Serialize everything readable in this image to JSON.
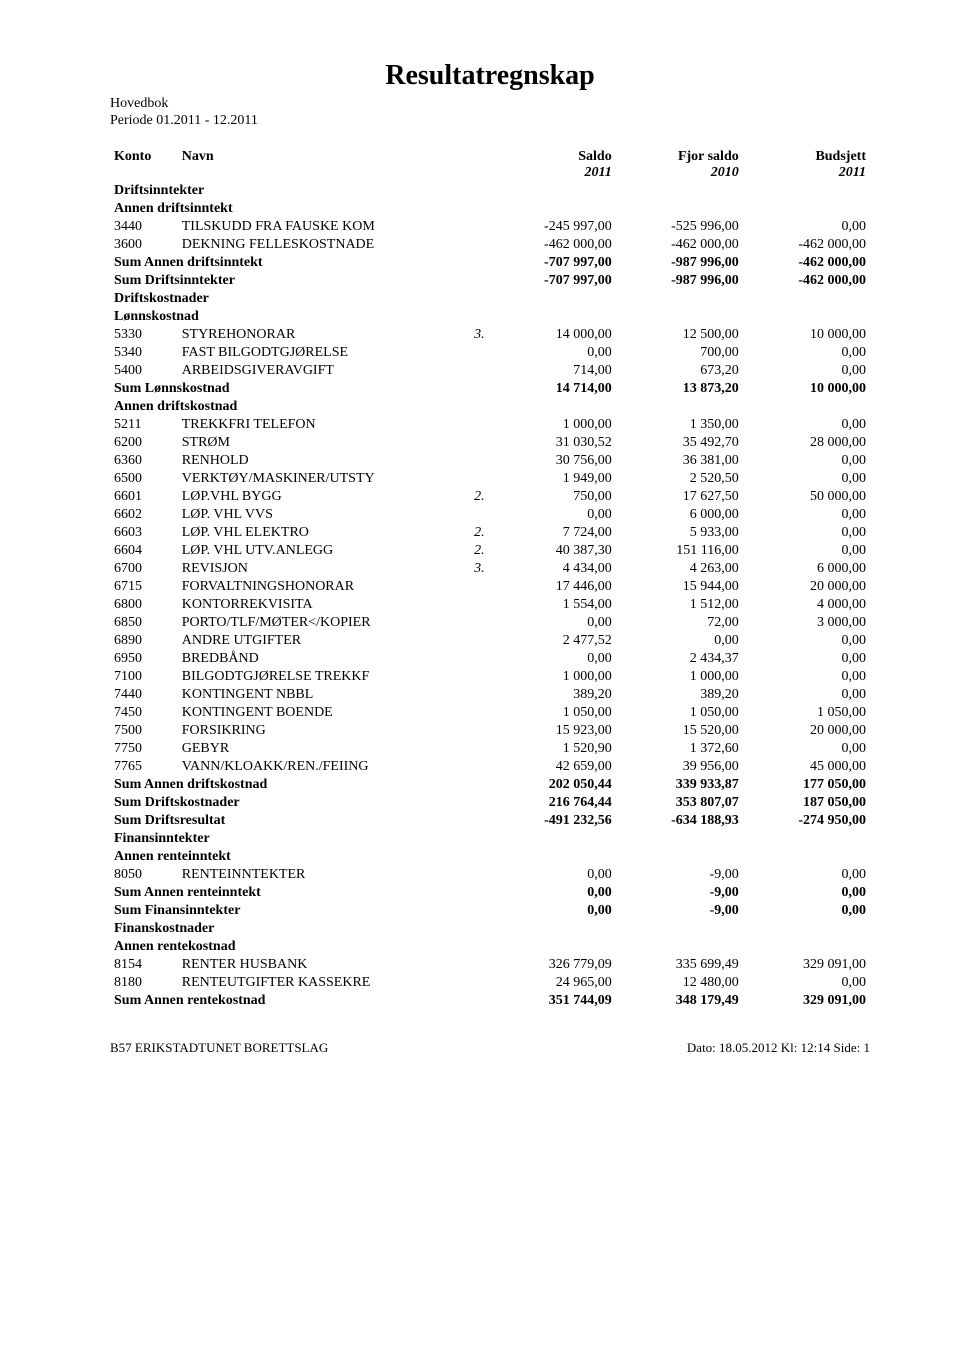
{
  "title": "Resultatregnskap",
  "header": {
    "hovedbok": "Hovedbok",
    "periode": "Periode 01.2011 - 12.2011"
  },
  "columns": {
    "konto": "Konto",
    "navn": "Navn",
    "saldo": "Saldo",
    "saldo_hand": "2011",
    "fjor": "Fjor saldo",
    "fjor_hand": "2010",
    "budsjett": "Budsjett",
    "budsjett_hand": "2011"
  },
  "sections": {
    "driftsinntekter": "Driftsinntekter",
    "driftskostnader": "Driftskostnader",
    "finansinntekter": "Finansinntekter",
    "finanskostnader": "Finanskostnader"
  },
  "groups": {
    "annen_driftsinntekt": {
      "title": "Annen driftsinntekt",
      "rows": [
        {
          "konto": "3440",
          "navn": "TILSKUDD FRA FAUSKE KOM",
          "note": "",
          "saldo": "-245 997,00",
          "fjor": "-525 996,00",
          "budsjett": "0,00"
        },
        {
          "konto": "3600",
          "navn": "DEKNING FELLESKOSTNADE",
          "note": "",
          "saldo": "-462 000,00",
          "fjor": "-462 000,00",
          "budsjett": "-462 000,00"
        }
      ],
      "sum": {
        "label": "Sum  Annen driftsinntekt",
        "saldo": "-707 997,00",
        "fjor": "-987 996,00",
        "budsjett": "-462 000,00"
      }
    },
    "sum_driftsinntekter": {
      "label": "Sum Driftsinntekter",
      "saldo": "-707 997,00",
      "fjor": "-987 996,00",
      "budsjett": "-462 000,00"
    },
    "lonnskostnad": {
      "title": "Lønnskostnad",
      "rows": [
        {
          "konto": "5330",
          "navn": "STYREHONORAR",
          "note": "3.",
          "saldo": "14 000,00",
          "fjor": "12 500,00",
          "budsjett": "10 000,00"
        },
        {
          "konto": "5340",
          "navn": "FAST BILGODTGJØRELSE",
          "note": "",
          "saldo": "0,00",
          "fjor": "700,00",
          "budsjett": "0,00"
        },
        {
          "konto": "5400",
          "navn": "ARBEIDSGIVERAVGIFT",
          "note": "",
          "saldo": "714,00",
          "fjor": "673,20",
          "budsjett": "0,00"
        }
      ],
      "sum": {
        "label": "Sum  Lønnskostnad",
        "saldo": "14 714,00",
        "fjor": "13 873,20",
        "budsjett": "10 000,00"
      }
    },
    "annen_driftskostnad": {
      "title": "Annen driftskostnad",
      "rows": [
        {
          "konto": "5211",
          "navn": "TREKKFRI TELEFON",
          "note": "",
          "saldo": "1 000,00",
          "fjor": "1 350,00",
          "budsjett": "0,00"
        },
        {
          "konto": "6200",
          "navn": "STRØM",
          "note": "",
          "saldo": "31 030,52",
          "fjor": "35 492,70",
          "budsjett": "28 000,00"
        },
        {
          "konto": "6360",
          "navn": "RENHOLD",
          "note": "",
          "saldo": "30 756,00",
          "fjor": "36 381,00",
          "budsjett": "0,00"
        },
        {
          "konto": "6500",
          "navn": "VERKTØY/MASKINER/UTSTY",
          "note": "",
          "saldo": "1 949,00",
          "fjor": "2 520,50",
          "budsjett": "0,00"
        },
        {
          "konto": "6601",
          "navn": "LØP.VHL BYGG",
          "note": "2.",
          "saldo": "750,00",
          "fjor": "17 627,50",
          "budsjett": "50 000,00"
        },
        {
          "konto": "6602",
          "navn": "LØP. VHL VVS",
          "note": "",
          "saldo": "0,00",
          "fjor": "6 000,00",
          "budsjett": "0,00"
        },
        {
          "konto": "6603",
          "navn": "LØP. VHL ELEKTRO",
          "note": "2.",
          "saldo": "7 724,00",
          "fjor": "5 933,00",
          "budsjett": "0,00"
        },
        {
          "konto": "6604",
          "navn": "LØP. VHL UTV.ANLEGG",
          "note": "2.",
          "saldo": "40 387,30",
          "fjor": "151 116,00",
          "budsjett": "0,00"
        },
        {
          "konto": "6700",
          "navn": "REVISJON",
          "note": "3.",
          "saldo": "4 434,00",
          "fjor": "4 263,00",
          "budsjett": "6 000,00"
        },
        {
          "konto": "6715",
          "navn": "FORVALTNINGSHONORAR",
          "note": "",
          "saldo": "17 446,00",
          "fjor": "15 944,00",
          "budsjett": "20 000,00"
        },
        {
          "konto": "6800",
          "navn": "KONTORREKVISITA",
          "note": "",
          "saldo": "1 554,00",
          "fjor": "1 512,00",
          "budsjett": "4 000,00"
        },
        {
          "konto": "6850",
          "navn": "PORTO/TLF/MØTER</KOPIER",
          "note": "",
          "saldo": "0,00",
          "fjor": "72,00",
          "budsjett": "3 000,00"
        },
        {
          "konto": "6890",
          "navn": "ANDRE UTGIFTER",
          "note": "",
          "saldo": "2 477,52",
          "fjor": "0,00",
          "budsjett": "0,00"
        },
        {
          "konto": "6950",
          "navn": "BREDBÅND",
          "note": "",
          "saldo": "0,00",
          "fjor": "2 434,37",
          "budsjett": "0,00"
        },
        {
          "konto": "7100",
          "navn": "BILGODTGJØRELSE TREKKF",
          "note": "",
          "saldo": "1 000,00",
          "fjor": "1 000,00",
          "budsjett": "0,00"
        },
        {
          "konto": "7440",
          "navn": "KONTINGENT NBBL",
          "note": "",
          "saldo": "389,20",
          "fjor": "389,20",
          "budsjett": "0,00"
        },
        {
          "konto": "7450",
          "navn": "KONTINGENT BOENDE",
          "note": "",
          "saldo": "1 050,00",
          "fjor": "1 050,00",
          "budsjett": "1 050,00"
        },
        {
          "konto": "7500",
          "navn": "FORSIKRING",
          "note": "",
          "saldo": "15 923,00",
          "fjor": "15 520,00",
          "budsjett": "20 000,00"
        },
        {
          "konto": "7750",
          "navn": "GEBYR",
          "note": "",
          "saldo": "1 520,90",
          "fjor": "1 372,60",
          "budsjett": "0,00"
        },
        {
          "konto": "7765",
          "navn": "VANN/KLOAKK/REN./FEIING",
          "note": "",
          "saldo": "42 659,00",
          "fjor": "39 956,00",
          "budsjett": "45 000,00"
        }
      ],
      "sum": {
        "label": "Sum  Annen driftskostnad",
        "saldo": "202 050,44",
        "fjor": "339 933,87",
        "budsjett": "177 050,00"
      }
    },
    "sum_driftskostnader": {
      "label": "Sum Driftskostnader",
      "saldo": "216 764,44",
      "fjor": "353 807,07",
      "budsjett": "187 050,00"
    },
    "sum_driftsresultat": {
      "label": "Sum Driftsresultat",
      "saldo": "-491 232,56",
      "fjor": "-634 188,93",
      "budsjett": "-274 950,00"
    },
    "annen_renteinntekt": {
      "title": "Annen renteinntekt",
      "rows": [
        {
          "konto": "8050",
          "navn": "RENTEINNTEKTER",
          "note": "",
          "saldo": "0,00",
          "fjor": "-9,00",
          "budsjett": "0,00"
        }
      ],
      "sum": {
        "label": "Sum  Annen renteinntekt",
        "saldo": "0,00",
        "fjor": "-9,00",
        "budsjett": "0,00"
      }
    },
    "sum_finansinntekter": {
      "label": "Sum Finansinntekter",
      "saldo": "0,00",
      "fjor": "-9,00",
      "budsjett": "0,00"
    },
    "annen_rentekostnad": {
      "title": "Annen rentekostnad",
      "rows": [
        {
          "konto": "8154",
          "navn": "RENTER HUSBANK",
          "note": "",
          "saldo": "326 779,09",
          "fjor": "335 699,49",
          "budsjett": "329 091,00"
        },
        {
          "konto": "8180",
          "navn": "RENTEUTGIFTER KASSEKRE",
          "note": "",
          "saldo": "24 965,00",
          "fjor": "12 480,00",
          "budsjett": "0,00"
        }
      ],
      "sum": {
        "label": "Sum  Annen rentekostnad",
        "saldo": "351 744,09",
        "fjor": "348 179,49",
        "budsjett": "329 091,00"
      }
    }
  },
  "footer": {
    "left": "B57 ERIKSTADTUNET BORETTSLAG",
    "right": "Dato: 18.05.2012   Kl: 12:14   Side: 1"
  }
}
